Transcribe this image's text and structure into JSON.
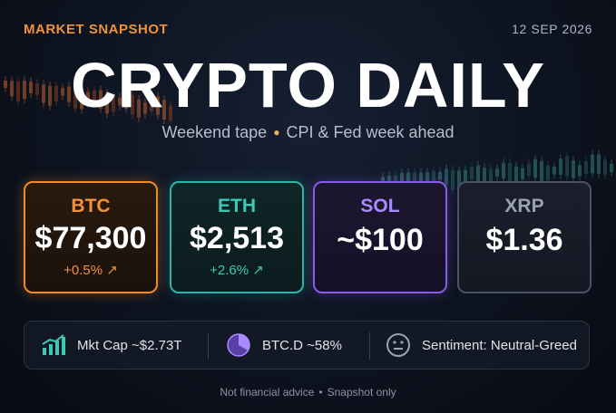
{
  "header": {
    "section_label": "MARKET SNAPSHOT",
    "date": "12 SEP 2026",
    "title": "CRYPTO DAILY",
    "subtitle_left": "Weekend tape",
    "subtitle_right": "CPI & Fed week ahead"
  },
  "cards": [
    {
      "symbol": "BTC",
      "price": "$77,300",
      "change": "+0.5% ↗",
      "accent": "#f08a2c"
    },
    {
      "symbol": "ETH",
      "price": "$2,513",
      "change": "+2.6% ↗",
      "accent": "#2fb5a6"
    },
    {
      "symbol": "SOL",
      "price": "~$100",
      "accent": "#8a5be6"
    },
    {
      "symbol": "XRP",
      "price": "$1.36",
      "accent": "#4a5366"
    }
  ],
  "stats": {
    "market_cap": "Mkt Cap ~$2.73T",
    "btc_dominance": "BTC.D ~58%",
    "sentiment": "Sentiment: Neutral-Greed"
  },
  "footer": {
    "left": "Not financial advice",
    "right": "Snapshot only"
  },
  "icons": {
    "market_cap": "bar-chart-up-icon",
    "dominance": "pie-chart-icon",
    "sentiment": "neutral-face-icon"
  }
}
